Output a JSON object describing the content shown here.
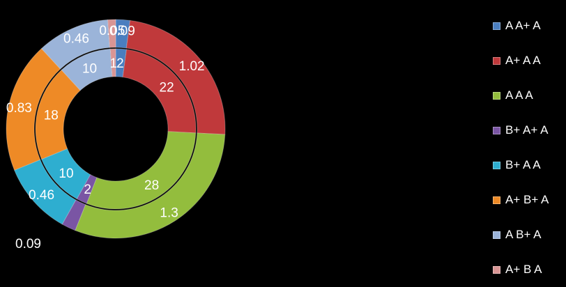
{
  "chart_data": {
    "type": "doughnut",
    "categories": [
      "A A+ A",
      "A+ A A",
      "A A A",
      "B+ A+ A",
      "B+ A A",
      "A+ B+ A",
      "A B+ A",
      "A+ B A"
    ],
    "colors": [
      "#4a7ebf",
      "#c0393b",
      "#93bd3d",
      "#7a55a4",
      "#2eaed0",
      "#ee8a26",
      "#9bb4d9",
      "#d99594"
    ],
    "series": [
      {
        "values": [
          2,
          22,
          28,
          2,
          10,
          18,
          10,
          1
        ],
        "labels": [
          "2",
          "22",
          "28",
          "2",
          "10",
          "18",
          "10",
          "1"
        ]
      },
      {
        "values": [
          0.09,
          1.02,
          1.3,
          0.09,
          0.46,
          0.83,
          0.46,
          0.05
        ],
        "labels": [
          "0.09",
          "1.02",
          "1.3",
          "",
          "0.46",
          "0.83",
          "0.46",
          "0.05"
        ]
      }
    ],
    "stray_label": "0.09"
  }
}
